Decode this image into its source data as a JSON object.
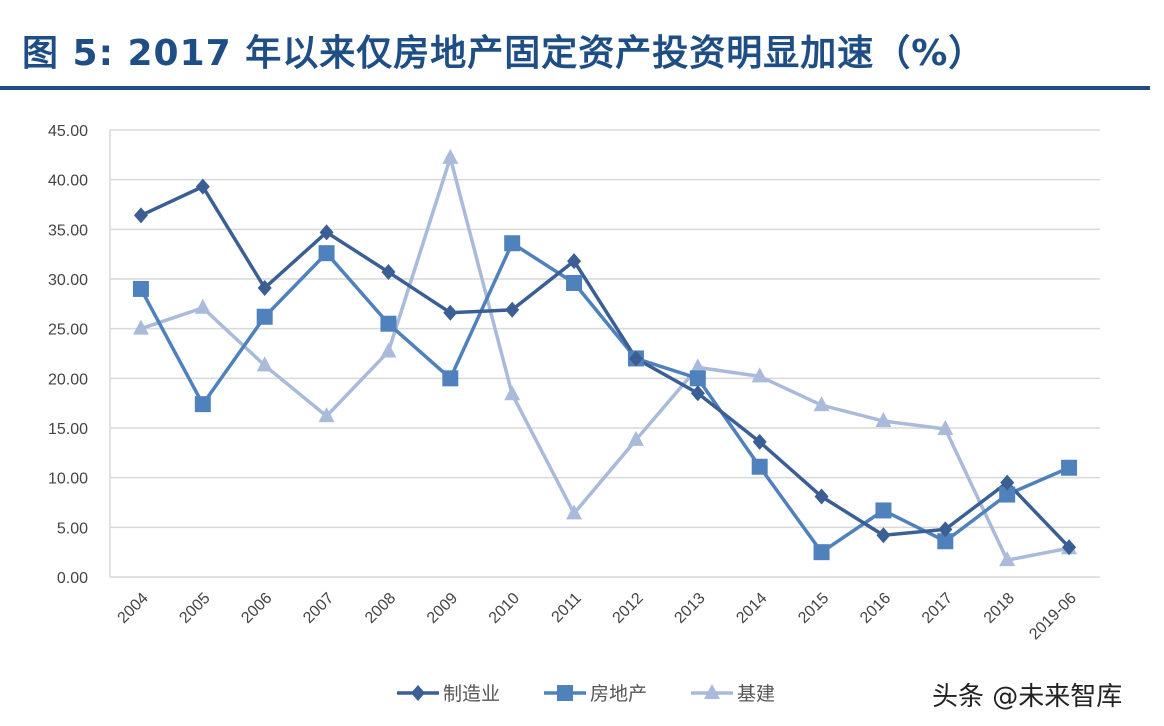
{
  "title": "图  5: 2017 年以来仅房地产固定资产投资明显加速（%）",
  "watermark": "头条 @未来智库",
  "chart_data": {
    "type": "line",
    "title": "",
    "xlabel": "",
    "ylabel": "",
    "categories": [
      "2004",
      "2005",
      "2006",
      "2007",
      "2008",
      "2009",
      "2010",
      "2011",
      "2012",
      "2013",
      "2014",
      "2015",
      "2016",
      "2017",
      "2018",
      "2019-06"
    ],
    "ylim": [
      0,
      45
    ],
    "yticks": [
      "0.00",
      "5.00",
      "10.00",
      "15.00",
      "20.00",
      "25.00",
      "30.00",
      "35.00",
      "40.00",
      "45.00"
    ],
    "grid": true,
    "legend_position": "bottom",
    "series": [
      {
        "name": "制造业",
        "marker": "diamond",
        "color": "#3b5f94",
        "values": [
          36.4,
          39.3,
          29.1,
          34.7,
          30.7,
          26.6,
          26.9,
          31.8,
          22.0,
          18.5,
          13.6,
          8.1,
          4.2,
          4.8,
          9.5,
          3.0
        ]
      },
      {
        "name": "房地产",
        "marker": "square",
        "color": "#4f81bd",
        "values": [
          29.0,
          17.4,
          26.2,
          32.6,
          25.5,
          20.0,
          33.6,
          29.6,
          22.0,
          20.0,
          11.1,
          2.5,
          6.7,
          3.6,
          8.3,
          11.0
        ]
      },
      {
        "name": "基建",
        "marker": "triangle",
        "color": "#a9badb",
        "values": [
          25.0,
          27.1,
          21.3,
          16.2,
          22.7,
          42.2,
          18.4,
          6.4,
          13.8,
          21.1,
          20.2,
          17.3,
          15.7,
          14.9,
          1.7,
          2.9
        ]
      }
    ]
  }
}
